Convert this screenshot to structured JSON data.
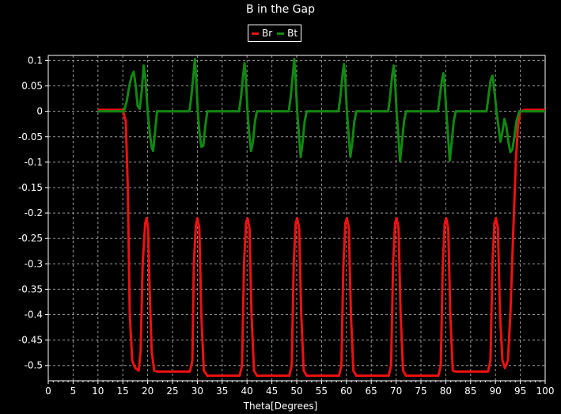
{
  "colors": {
    "background": "#000000",
    "grid": "#9a9a9a",
    "axis": "#ffffff",
    "text": "#ffffff"
  },
  "chart_data": {
    "type": "line",
    "title": "B in the Gap",
    "xlabel": "Theta[Degrees]",
    "ylabel": "",
    "xlim": [
      0,
      100
    ],
    "ylim": [
      -0.53,
      0.11
    ],
    "x_ticks": [
      "0",
      "5",
      "10",
      "15",
      "20",
      "25",
      "30",
      "35",
      "40",
      "45",
      "50",
      "55",
      "60",
      "65",
      "70",
      "75",
      "80",
      "85",
      "90",
      "95",
      "100"
    ],
    "y_ticks": [
      "0.1",
      "0.05",
      "0",
      "-0.05",
      "-0.1",
      "-0.15",
      "-0.2",
      "-0.25",
      "-0.3",
      "-0.35",
      "-0.4",
      "-0.45",
      "-0.5"
    ],
    "grid": true,
    "legend": "top-center",
    "series": [
      {
        "name": "Br",
        "color": "#ee1111",
        "points": [
          [
            10.2,
            0.003
          ],
          [
            12,
            0.003
          ],
          [
            15,
            0.003
          ],
          [
            15.6,
            -0.02
          ],
          [
            16.0,
            -0.15
          ],
          [
            16.4,
            -0.4
          ],
          [
            16.9,
            -0.49
          ],
          [
            17.5,
            -0.505
          ],
          [
            18.2,
            -0.51
          ],
          [
            18.6,
            -0.47
          ],
          [
            19.0,
            -0.3
          ],
          [
            19.5,
            -0.22
          ],
          [
            19.8,
            -0.21
          ],
          [
            20.1,
            -0.23
          ],
          [
            20.4,
            -0.35
          ],
          [
            20.8,
            -0.47
          ],
          [
            21.3,
            -0.51
          ],
          [
            22.0,
            -0.512
          ],
          [
            25,
            -0.512
          ],
          [
            28.5,
            -0.512
          ],
          [
            29.0,
            -0.49
          ],
          [
            29.3,
            -0.3
          ],
          [
            29.7,
            -0.225
          ],
          [
            30.0,
            -0.21
          ],
          [
            30.4,
            -0.23
          ],
          [
            30.8,
            -0.4
          ],
          [
            31.3,
            -0.51
          ],
          [
            32.0,
            -0.52
          ],
          [
            35,
            -0.52
          ],
          [
            38.5,
            -0.52
          ],
          [
            39.0,
            -0.5
          ],
          [
            39.4,
            -0.3
          ],
          [
            39.8,
            -0.22
          ],
          [
            40.1,
            -0.21
          ],
          [
            40.5,
            -0.23
          ],
          [
            40.9,
            -0.4
          ],
          [
            41.4,
            -0.51
          ],
          [
            42.0,
            -0.52
          ],
          [
            45,
            -0.52
          ],
          [
            48.5,
            -0.52
          ],
          [
            49.0,
            -0.5
          ],
          [
            49.4,
            -0.3
          ],
          [
            49.8,
            -0.22
          ],
          [
            50.1,
            -0.21
          ],
          [
            50.5,
            -0.23
          ],
          [
            50.9,
            -0.4
          ],
          [
            51.4,
            -0.51
          ],
          [
            52.0,
            -0.52
          ],
          [
            55,
            -0.52
          ],
          [
            58.5,
            -0.52
          ],
          [
            59.0,
            -0.5
          ],
          [
            59.4,
            -0.3
          ],
          [
            59.8,
            -0.22
          ],
          [
            60.1,
            -0.21
          ],
          [
            60.5,
            -0.23
          ],
          [
            60.9,
            -0.4
          ],
          [
            61.4,
            -0.51
          ],
          [
            62.0,
            -0.52
          ],
          [
            65,
            -0.52
          ],
          [
            68.5,
            -0.52
          ],
          [
            69.0,
            -0.5
          ],
          [
            69.4,
            -0.3
          ],
          [
            69.8,
            -0.22
          ],
          [
            70.1,
            -0.21
          ],
          [
            70.5,
            -0.23
          ],
          [
            70.9,
            -0.4
          ],
          [
            71.4,
            -0.51
          ],
          [
            72.0,
            -0.52
          ],
          [
            75,
            -0.52
          ],
          [
            78.5,
            -0.52
          ],
          [
            79.0,
            -0.5
          ],
          [
            79.4,
            -0.3
          ],
          [
            79.8,
            -0.22
          ],
          [
            80.1,
            -0.21
          ],
          [
            80.5,
            -0.23
          ],
          [
            80.9,
            -0.4
          ],
          [
            81.4,
            -0.51
          ],
          [
            82.0,
            -0.512
          ],
          [
            85,
            -0.512
          ],
          [
            88.5,
            -0.512
          ],
          [
            89.0,
            -0.49
          ],
          [
            89.4,
            -0.3
          ],
          [
            89.8,
            -0.22
          ],
          [
            90.1,
            -0.21
          ],
          [
            90.5,
            -0.23
          ],
          [
            90.9,
            -0.4
          ],
          [
            91.4,
            -0.49
          ],
          [
            91.9,
            -0.505
          ],
          [
            92.5,
            -0.49
          ],
          [
            93.0,
            -0.4
          ],
          [
            93.6,
            -0.23
          ],
          [
            94.1,
            -0.1
          ],
          [
            94.5,
            -0.03
          ],
          [
            95.0,
            0.0
          ],
          [
            96,
            0.003
          ],
          [
            99.8,
            0.003
          ]
        ]
      },
      {
        "name": "Bt",
        "color": "#118811",
        "points": [
          [
            10.2,
            0.0
          ],
          [
            15.2,
            0.0
          ],
          [
            15.8,
            0.02
          ],
          [
            16.3,
            0.05
          ],
          [
            16.8,
            0.07
          ],
          [
            17.2,
            0.078
          ],
          [
            17.6,
            0.05
          ],
          [
            18.0,
            0.01
          ],
          [
            18.4,
            0.005
          ],
          [
            18.8,
            0.04
          ],
          [
            19.2,
            0.09
          ],
          [
            19.6,
            0.06
          ],
          [
            20.0,
            0.0
          ],
          [
            20.4,
            -0.04
          ],
          [
            20.8,
            -0.07
          ],
          [
            21.1,
            -0.078
          ],
          [
            21.5,
            -0.04
          ],
          [
            21.9,
            0.0
          ],
          [
            28.4,
            0.0
          ],
          [
            28.8,
            0.03
          ],
          [
            29.2,
            0.07
          ],
          [
            29.5,
            0.103
          ],
          [
            29.8,
            0.06
          ],
          [
            30.1,
            0.0
          ],
          [
            30.4,
            -0.04
          ],
          [
            30.8,
            -0.07
          ],
          [
            31.2,
            -0.068
          ],
          [
            31.6,
            -0.03
          ],
          [
            32.0,
            0.0
          ],
          [
            38.4,
            0.0
          ],
          [
            38.8,
            0.03
          ],
          [
            39.2,
            0.07
          ],
          [
            39.5,
            0.095
          ],
          [
            39.8,
            0.06
          ],
          [
            40.1,
            0.0
          ],
          [
            40.4,
            -0.04
          ],
          [
            40.8,
            -0.078
          ],
          [
            41.2,
            -0.06
          ],
          [
            41.6,
            -0.02
          ],
          [
            42.0,
            0.0
          ],
          [
            48.4,
            0.0
          ],
          [
            48.8,
            0.03
          ],
          [
            49.2,
            0.07
          ],
          [
            49.5,
            0.103
          ],
          [
            49.8,
            0.06
          ],
          [
            50.1,
            0.0
          ],
          [
            50.4,
            -0.04
          ],
          [
            50.8,
            -0.09
          ],
          [
            51.2,
            -0.06
          ],
          [
            51.6,
            -0.02
          ],
          [
            52.0,
            0.0
          ],
          [
            58.4,
            0.0
          ],
          [
            58.8,
            0.03
          ],
          [
            59.2,
            0.07
          ],
          [
            59.5,
            0.093
          ],
          [
            59.8,
            0.06
          ],
          [
            60.1,
            0.0
          ],
          [
            60.4,
            -0.04
          ],
          [
            60.8,
            -0.09
          ],
          [
            61.2,
            -0.06
          ],
          [
            61.6,
            -0.02
          ],
          [
            62.0,
            0.0
          ],
          [
            68.4,
            0.0
          ],
          [
            68.8,
            0.03
          ],
          [
            69.2,
            0.07
          ],
          [
            69.5,
            0.09
          ],
          [
            69.8,
            0.06
          ],
          [
            70.1,
            0.0
          ],
          [
            70.4,
            -0.04
          ],
          [
            70.8,
            -0.098
          ],
          [
            71.2,
            -0.06
          ],
          [
            71.6,
            -0.02
          ],
          [
            72.0,
            0.0
          ],
          [
            78.4,
            0.0
          ],
          [
            78.8,
            0.03
          ],
          [
            79.2,
            0.06
          ],
          [
            79.5,
            0.075
          ],
          [
            79.8,
            0.05
          ],
          [
            80.1,
            0.0
          ],
          [
            80.4,
            -0.04
          ],
          [
            80.8,
            -0.097
          ],
          [
            81.2,
            -0.06
          ],
          [
            81.6,
            -0.02
          ],
          [
            82.0,
            0.0
          ],
          [
            88.2,
            0.0
          ],
          [
            88.6,
            0.03
          ],
          [
            89.0,
            0.06
          ],
          [
            89.4,
            0.07
          ],
          [
            89.8,
            0.04
          ],
          [
            90.2,
            0.0
          ],
          [
            90.6,
            -0.03
          ],
          [
            91.0,
            -0.06
          ],
          [
            91.4,
            -0.04
          ],
          [
            91.8,
            -0.015
          ],
          [
            92.2,
            -0.03
          ],
          [
            92.6,
            -0.06
          ],
          [
            93.0,
            -0.08
          ],
          [
            93.4,
            -0.075
          ],
          [
            93.8,
            -0.05
          ],
          [
            94.2,
            -0.02
          ],
          [
            94.8,
            0.0
          ],
          [
            99.8,
            0.0
          ]
        ]
      }
    ]
  }
}
